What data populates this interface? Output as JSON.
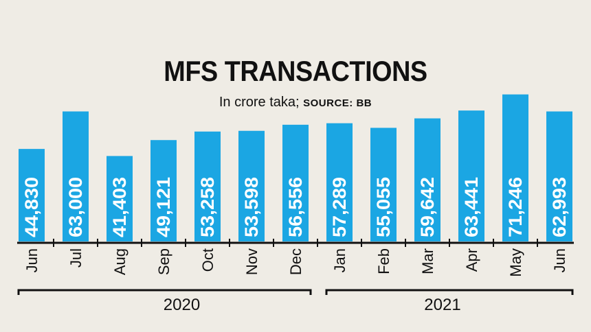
{
  "chart_data": {
    "type": "bar",
    "title": "MFS TRANSACTIONS",
    "subtitle": "In crore taka;",
    "source": "SOURCE: BB",
    "categories": [
      "Jun",
      "Jul",
      "Aug",
      "Sep",
      "Oct",
      "Nov",
      "Dec",
      "Jan",
      "Feb",
      "Mar",
      "Apr",
      "May",
      "Jun"
    ],
    "values": [
      44830,
      63000,
      41403,
      49121,
      53258,
      53598,
      56556,
      57289,
      55055,
      59642,
      63441,
      71246,
      62993
    ],
    "value_labels": [
      "44,830",
      "63,000",
      "41,403",
      "49,121",
      "53,258",
      "53,598",
      "56,556",
      "57,289",
      "55,055",
      "59,642",
      "63,441",
      "71,246",
      "62,993"
    ],
    "groups": [
      {
        "label": "2020",
        "from": 0,
        "to": 6
      },
      {
        "label": "2021",
        "from": 7,
        "to": 12
      }
    ],
    "xlabel": "",
    "ylabel": "",
    "ylim": [
      0,
      117000
    ],
    "grid": false,
    "bar_color": "#1ba6e3",
    "background": "#efece5"
  }
}
